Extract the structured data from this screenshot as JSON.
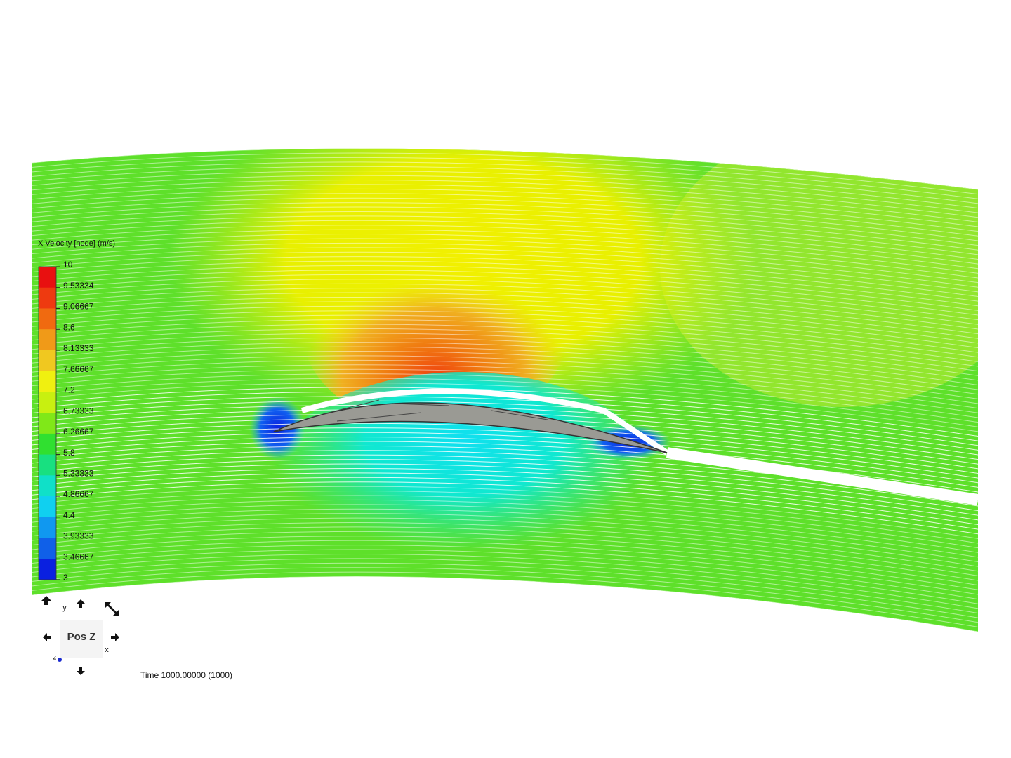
{
  "legend": {
    "title": "X Velocity [node] (m/s)",
    "labels": [
      "10",
      "9.53334",
      "9.06667",
      "8.6",
      "8.13333",
      "7.66667",
      "7.2",
      "6.73333",
      "6.26667",
      "5.8",
      "5.33333",
      "4.86667",
      "4.4",
      "3.93333",
      "3.46667",
      "3"
    ]
  },
  "view_cube": {
    "face": "Pos Z",
    "axis_y": "y",
    "axis_x": "x",
    "axis_z": "z"
  },
  "status": {
    "time": "Time 1000.00000 (1000)"
  }
}
